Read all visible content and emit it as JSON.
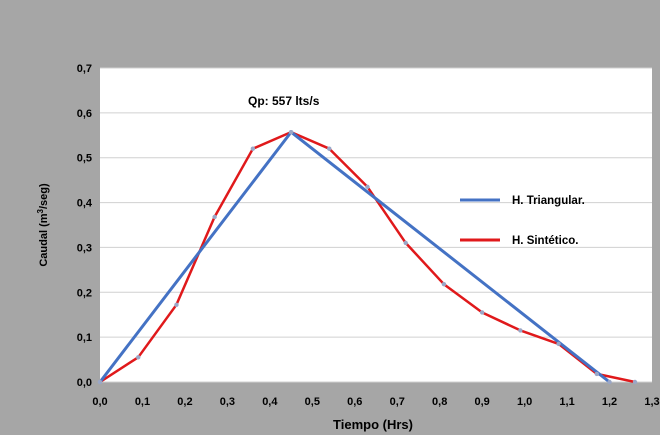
{
  "chart_data": {
    "type": "line",
    "xlabel": "Tiempo (Hrs)",
    "ylabel": "Caudal (m³/seg)",
    "ylabel_parts": [
      "Caudal (m",
      "3",
      "/seg)"
    ],
    "xlim": [
      0,
      1.3
    ],
    "ylim": [
      0,
      0.7
    ],
    "x_ticks": [
      "0,0",
      "0,1",
      "0,2",
      "0,3",
      "0,4",
      "0,5",
      "0,6",
      "0,7",
      "0,8",
      "0,9",
      "1,0",
      "1,1",
      "1,2",
      "1,3"
    ],
    "y_ticks": [
      "0,0",
      "0,1",
      "0,2",
      "0,3",
      "0,4",
      "0,5",
      "0,6",
      "0,7"
    ],
    "grid": "horizontal",
    "legend_position": "right",
    "annotation": "Qp: 557 lts/s",
    "series": [
      {
        "name": "H. Triangular.",
        "color": "#4472c4",
        "x": [
          0,
          0.45,
          1.2
        ],
        "y": [
          0,
          0.557,
          0
        ]
      },
      {
        "name": "H. Sintético.",
        "color": "#e0191b",
        "x": [
          0,
          0.09,
          0.18,
          0.27,
          0.36,
          0.45,
          0.54,
          0.63,
          0.72,
          0.81,
          0.9,
          0.99,
          1.08,
          1.17,
          1.26
        ],
        "y": [
          0,
          0.055,
          0.172,
          0.368,
          0.52,
          0.557,
          0.52,
          0.435,
          0.31,
          0.218,
          0.155,
          0.115,
          0.085,
          0.018,
          0
        ]
      }
    ]
  }
}
